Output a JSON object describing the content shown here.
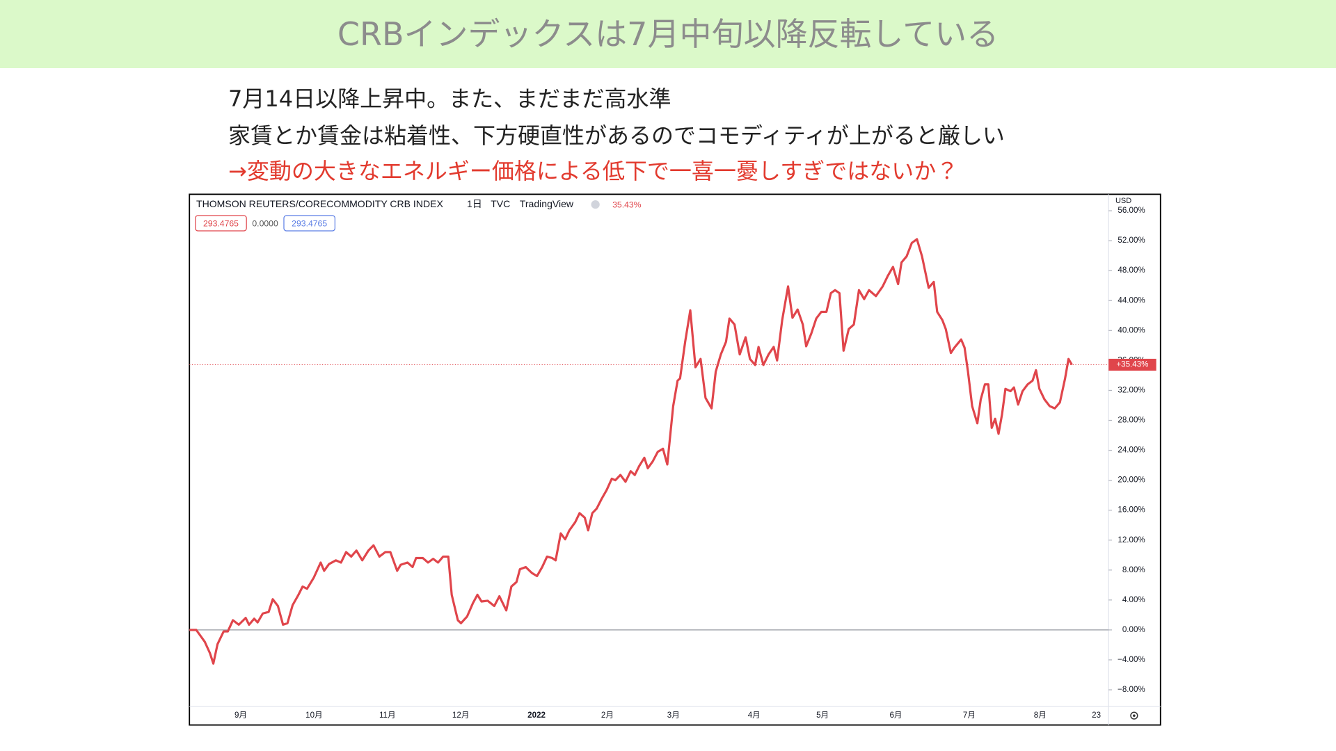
{
  "slide": {
    "title": "CRBインデックスは7月中旬以降反転している",
    "notes": [
      "7月14日以降上昇中。また、まだまだ高水準",
      "家賃とか賃金は粘着性、下方硬直性があるのでコモディティが上がると厳しい",
      "→変動の大きなエネルギー価格による低下で一喜一憂しすぎではないか？"
    ]
  },
  "chart_data": {
    "type": "line",
    "symbol": "THOMSON REUTERS/CORECOMMODITY CRB INDEX",
    "interval": "1日",
    "source": "TVC",
    "provider": "TradingView",
    "change_label": "35.43%",
    "ohlc_labels": [
      "293.4765",
      "0.0000",
      "293.4765"
    ],
    "currency": "USD",
    "color": "#e0454b",
    "x": [
      0,
      2.8,
      6.3,
      8.4,
      9.8,
      11.5,
      14.0,
      15.7,
      17.8,
      20.2,
      23.0,
      24.4,
      26.5,
      27.9,
      30.0,
      32.4,
      34.1,
      36.2,
      38.3,
      40.1,
      42.2,
      44.6,
      46.3,
      48.1,
      50.9,
      53.7,
      55.1,
      57.1,
      59.9,
      62.0,
      64.1,
      66.2,
      68.3,
      70.7,
      73.2,
      75.3,
      77.7,
      80.1,
      82.2,
      85.0,
      86.4,
      89.2,
      91.3,
      92.7,
      95.5,
      97.6,
      99.7,
      101.7,
      103.8,
      105.9,
      107.3,
      109.8,
      111.1,
      113.6,
      116.0,
      117.8,
      119.5,
      122.0,
      124.7,
      126.8,
      129.6,
      131.7,
      133.8,
      135.2,
      137.6,
      140.1,
      142.2,
      144.3,
      146.3,
      148.4,
      149.8,
      151.9,
      153.7,
      155.4,
      157.8,
      159.6,
      161.7,
      163.1,
      164.8,
      166.6,
      168.6,
      170.7,
      172.8,
      174.2,
      176.3,
      178.4,
      180.5,
      182.2,
      184.0,
      186.1,
      187.5,
      189.5,
      191.6,
      193.7,
      195.5,
      197.9,
      199.7,
      200.7,
      202.8,
      204.9,
      207.0,
      209.1,
      211.1,
      213.6,
      215.3,
      217.4,
      219.5,
      220.9,
      223.0,
      225.1,
      227.5,
      229.3,
      231.4,
      232.8,
      234.8,
      236.9,
      239.0,
      240.4,
      242.5,
      244.9,
      246.7,
      248.8,
      250.9,
      252.3,
      254.4,
      256.4,
      258.5,
      260.6,
      262.4,
      264.1,
      265.9,
      267.6,
      269.7,
      271.8,
      273.9,
      276.0,
      278.0,
      280.8,
      283.6,
      285.7,
      287.8,
      289.9,
      291.3,
      293.4,
      295.5,
      297.6,
      299.7,
      302.4,
      304.5,
      305.9,
      308.0,
      309.4,
      311.5,
      312.9,
      315.7,
      317.1,
      318.5,
      320.2,
      322.3,
      323.7,
      325.4,
      326.8,
      328.2,
      329.6,
      331.0,
      332.4,
      333.8,
      335.9,
      337.3,
      339.0,
      340.8,
      342.9,
      344.9,
      346.3,
      347.7,
      349.8,
      351.9,
      354.0,
      356.1,
      358.2,
      359.6,
      361.0
    ],
    "values": [
      0,
      0,
      -1.6,
      -3.1,
      -4.5,
      -1.9,
      -0.2,
      -0.2,
      1.3,
      0.7,
      1.6,
      0.7,
      1.5,
      1.0,
      2.2,
      2.4,
      4.1,
      3.2,
      0.7,
      0.9,
      3.3,
      4.7,
      5.8,
      5.5,
      7.0,
      9.0,
      7.9,
      8.8,
      9.3,
      9.0,
      10.4,
      9.8,
      10.6,
      9.3,
      10.6,
      11.3,
      9.8,
      10.4,
      10.4,
      7.9,
      8.7,
      9.0,
      8.4,
      9.6,
      9.6,
      9.0,
      9.5,
      9.0,
      9.8,
      9.8,
      4.7,
      1.3,
      0.9,
      1.8,
      3.6,
      4.7,
      3.8,
      3.9,
      3.2,
      4.5,
      2.6,
      5.8,
      6.4,
      8.1,
      8.4,
      7.6,
      7.2,
      8.4,
      9.8,
      9.6,
      9.3,
      12.9,
      12.1,
      13.3,
      14.4,
      15.6,
      15.0,
      13.3,
      15.6,
      16.2,
      17.5,
      18.7,
      20.2,
      20.0,
      20.7,
      19.8,
      21.2,
      20.7,
      21.9,
      23.0,
      21.6,
      22.5,
      23.8,
      24.2,
      22.1,
      29.9,
      33.3,
      33.6,
      38.5,
      42.7,
      35.1,
      36.2,
      31.0,
      29.6,
      34.5,
      36.8,
      38.5,
      41.6,
      40.8,
      36.8,
      39.1,
      36.2,
      35.4,
      37.8,
      35.4,
      36.8,
      37.8,
      36.0,
      41.4,
      45.9,
      41.7,
      42.8,
      40.8,
      37.9,
      39.6,
      41.6,
      42.5,
      42.5,
      45.0,
      45.4,
      45.0,
      37.3,
      40.2,
      40.8,
      45.4,
      44.2,
      45.4,
      44.6,
      45.9,
      47.3,
      48.5,
      46.2,
      49.1,
      49.9,
      51.7,
      52.2,
      49.9,
      45.7,
      46.5,
      42.5,
      41.4,
      40.2,
      37.0,
      37.7,
      38.8,
      37.7,
      34.5,
      29.9,
      27.6,
      30.8,
      32.8,
      32.8,
      27.0,
      28.2,
      26.2,
      28.8,
      32.2,
      31.9,
      32.4,
      30.1,
      31.9,
      32.8,
      33.3,
      34.7,
      32.2,
      30.8,
      29.9,
      29.6,
      30.4,
      33.6,
      36.2,
      35.43
    ],
    "last_label": {
      "value": 35.43,
      "label": "+35.43%"
    },
    "xlim": [
      0,
      376
    ],
    "xticks": [
      {
        "value": 21,
        "label": "9月"
      },
      {
        "value": 51,
        "label": "10月"
      },
      {
        "value": 81,
        "label": "11月"
      },
      {
        "value": 111,
        "label": "12月"
      },
      {
        "value": 142,
        "label": "2022"
      },
      {
        "value": 171,
        "label": "2月"
      },
      {
        "value": 198,
        "label": "3月"
      },
      {
        "value": 231,
        "label": "4月"
      },
      {
        "value": 259,
        "label": "5月"
      },
      {
        "value": 289,
        "label": "6月"
      },
      {
        "value": 319,
        "label": "7月"
      },
      {
        "value": 348,
        "label": "8月"
      },
      {
        "value": 371,
        "label": "23"
      }
    ],
    "ylim": [
      -10.2,
      58.2
    ],
    "yticks": [
      {
        "value": -8,
        "label": "−8.00%"
      },
      {
        "value": -4,
        "label": "−4.00%"
      },
      {
        "value": 0,
        "label": "0.00%"
      },
      {
        "value": 4,
        "label": "4.00%"
      },
      {
        "value": 8,
        "label": "8.00%"
      },
      {
        "value": 12,
        "label": "12.00%"
      },
      {
        "value": 16,
        "label": "16.00%"
      },
      {
        "value": 20,
        "label": "20.00%"
      },
      {
        "value": 24,
        "label": "24.00%"
      },
      {
        "value": 28,
        "label": "28.00%"
      },
      {
        "value": 32,
        "label": "32.00%"
      },
      {
        "value": 36,
        "label": "36.00%"
      },
      {
        "value": 40,
        "label": "40.00%"
      },
      {
        "value": 44,
        "label": "44.00%"
      },
      {
        "value": 48,
        "label": "48.00%"
      },
      {
        "value": 52,
        "label": "52.00%"
      },
      {
        "value": 56,
        "label": "56.00%"
      }
    ],
    "zero_line": 0
  }
}
